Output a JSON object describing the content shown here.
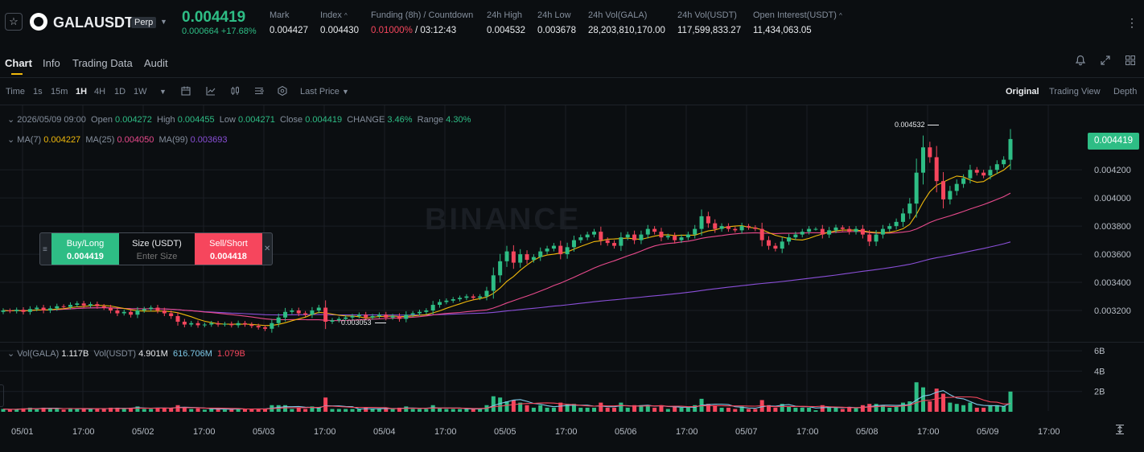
{
  "header": {
    "symbol": "GALAUSDT",
    "contract_tag": "Perp",
    "last_price": "0.004419",
    "change": "0.000664 +17.68%",
    "stats": [
      {
        "label": "Mark",
        "value": "0.004427"
      },
      {
        "label": "Index",
        "value": "0.004430"
      },
      {
        "label": "Funding (8h) / Countdown",
        "rate": "0.01000%",
        "countdown": " / 03:12:43"
      },
      {
        "label": "24h High",
        "value": "0.004532"
      },
      {
        "label": "24h Low",
        "value": "0.003678"
      },
      {
        "label": "24h Vol(GALA)",
        "value": "28,203,810,170.00"
      },
      {
        "label": "24h Vol(USDT)",
        "value": "117,599,833.27"
      },
      {
        "label": "Open Interest(USDT)",
        "value": "11,434,063.05"
      }
    ],
    "more": "⋮"
  },
  "tabs": [
    "Chart",
    "Info",
    "Trading Data",
    "Audit"
  ],
  "toolbar": {
    "intervals": [
      "Time",
      "1s",
      "15m",
      "1H",
      "4H",
      "1D",
      "1W"
    ],
    "selected_interval": "1H",
    "price_type": "Last Price",
    "views": [
      "Original",
      "Trading View",
      "Depth"
    ],
    "selected_view": "Original"
  },
  "ohlc": {
    "time": "2026/05/09 09:00",
    "open_label": "Open",
    "open": "0.004272",
    "high_label": "High",
    "high": "0.004455",
    "low_label": "Low",
    "low": "0.004271",
    "close_label": "Close",
    "close": "0.004419",
    "change_label": "CHANGE",
    "change": "3.46%",
    "range_label": "Range",
    "range": "4.30%"
  },
  "ma": {
    "ma7_label": "MA(7)",
    "ma7": "0.004227",
    "ma25_label": "MA(25)",
    "ma25": "0.004050",
    "ma99_label": "MA(99)",
    "ma99": "0.003693"
  },
  "volume_legend": {
    "label": "Vol(GALA)",
    "gala": "1.117B",
    "usdt_label": "Vol(USDT)",
    "usdt": "4.901M",
    "ma1": "616.706M",
    "ma2": "1.079B"
  },
  "order_widget": {
    "buy_label": "Buy/Long",
    "buy_price": "0.004419",
    "size_label": "Size (USDT)",
    "size_placeholder": "Enter Size",
    "sell_label": "Sell/Short",
    "sell_price": "0.004418"
  },
  "watermark": "BINANCE",
  "colors": {
    "up": "#2ebd85",
    "down": "#f6465d",
    "ma7": "#f0b90b",
    "ma25": "#e84a8c",
    "ma99": "#8a4fd8",
    "accent": "#f0b90b"
  },
  "chart_data": {
    "type": "candlestick",
    "price_axis_ticks": [
      "0.004419",
      "0.004200",
      "0.004000",
      "0.003800",
      "0.003600",
      "0.003400",
      "0.003200"
    ],
    "price_ylim": [
      0.003,
      0.00463
    ],
    "volume_axis_ticks": [
      "6B",
      "4B",
      "2B"
    ],
    "x_tick_labels": [
      "05/01",
      "17:00",
      "05/02",
      "17:00",
      "05/03",
      "17:00",
      "05/04",
      "17:00",
      "05/05",
      "17:00",
      "05/06",
      "17:00",
      "05/07",
      "17:00",
      "05/08",
      "17:00",
      "05/09",
      "17:00"
    ],
    "high_marker": "0.004532",
    "low_marker": "0.003053",
    "candle_closes": [
      0.0032,
      0.003195,
      0.003205,
      0.00319,
      0.00321,
      0.00322,
      0.0032,
      0.003215,
      0.00323,
      0.003225,
      0.00324,
      0.00325,
      0.003235,
      0.003245,
      0.00323,
      0.00322,
      0.0032,
      0.00318,
      0.00319,
      0.00317,
      0.0032,
      0.00321,
      0.00322,
      0.0032,
      0.00318,
      0.00316,
      0.00312,
      0.0031,
      0.00311,
      0.003095,
      0.0031,
      0.00311,
      0.0031,
      0.003105,
      0.003095,
      0.00311,
      0.0031,
      0.00309,
      0.00308,
      0.00307,
      0.00311,
      0.00315,
      0.00319,
      0.0032,
      0.00318,
      0.00317,
      0.0032,
      0.00322,
      0.00312,
      0.00313,
      0.00314,
      0.00315,
      0.00316,
      0.00317,
      0.00315,
      0.00316,
      0.00317,
      0.00315,
      0.00316,
      0.00314,
      0.00317,
      0.00318,
      0.00319,
      0.0032,
      0.00324,
      0.00326,
      0.00327,
      0.00328,
      0.00329,
      0.0033,
      0.00329,
      0.0033,
      0.00334,
      0.00345,
      0.00355,
      0.00362,
      0.00354,
      0.0036,
      0.00356,
      0.00358,
      0.00362,
      0.00364,
      0.00366,
      0.0036,
      0.00365,
      0.0037,
      0.00372,
      0.00374,
      0.00376,
      0.0037,
      0.00368,
      0.00366,
      0.00372,
      0.00374,
      0.0037,
      0.00374,
      0.00378,
      0.00376,
      0.00372,
      0.00373,
      0.0037,
      0.00372,
      0.00374,
      0.00378,
      0.00387,
      0.00382,
      0.00378,
      0.0038,
      0.00378,
      0.00377,
      0.0038,
      0.00379,
      0.00378,
      0.0037,
      0.00366,
      0.00364,
      0.00369,
      0.00372,
      0.00374,
      0.00376,
      0.00378,
      0.00378,
      0.00374,
      0.00377,
      0.00379,
      0.00378,
      0.00376,
      0.00378,
      0.00374,
      0.00369,
      0.00374,
      0.00378,
      0.0038,
      0.00383,
      0.00389,
      0.00396,
      0.00418,
      0.00436,
      0.00429,
      0.00412,
      0.00399,
      0.00405,
      0.0041,
      0.00414,
      0.0042,
      0.00418,
      0.00416,
      0.0042,
      0.00424,
      0.004272,
      0.004419
    ]
  }
}
